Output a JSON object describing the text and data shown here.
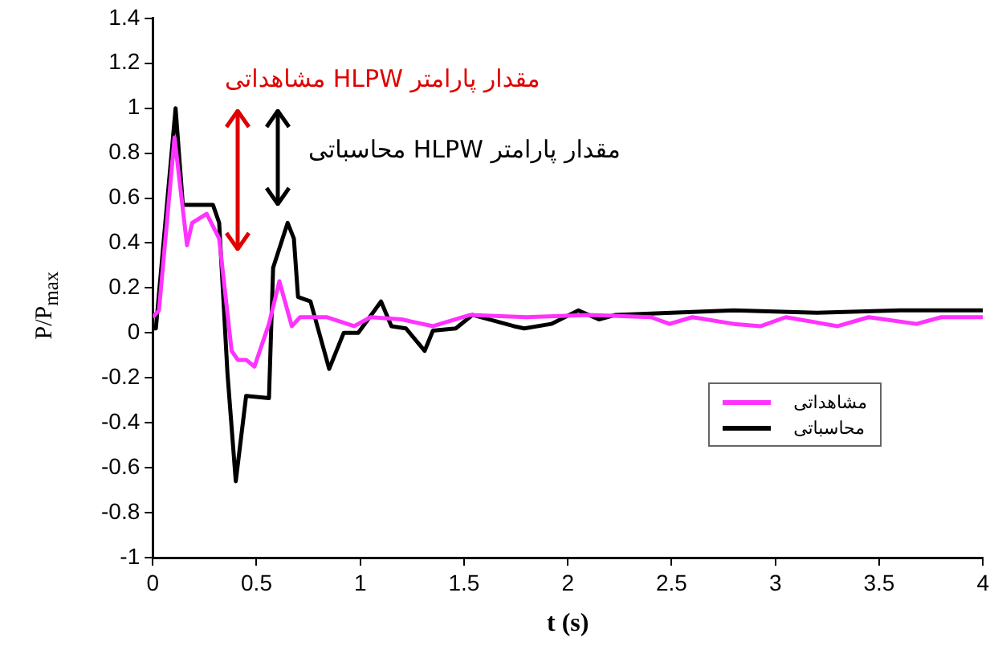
{
  "chart_data": {
    "type": "line",
    "xlabel": "t (s)",
    "ylabel": "P/P$_{max}$",
    "xlim": [
      0,
      4
    ],
    "xticks": [
      0,
      0.5,
      1,
      1.5,
      2,
      2.5,
      3,
      3.5,
      4
    ],
    "ylim": [
      -1,
      1.4
    ],
    "yticks": [
      -1,
      -0.8,
      -0.6,
      -0.4,
      -0.2,
      0,
      0.2,
      0.4,
      0.6,
      0.8,
      1,
      1.2,
      1.4
    ],
    "grid": false,
    "legend": "bottom right",
    "marker": "none",
    "line_style": "solid",
    "annotations": [
      "مقدار پارامتر HLPW مشاهداتی",
      "مقدار پارامتر HLPW محاسباتی"
    ],
    "series": [
      {
        "name": "مشاهداتی",
        "color": "#ff33ff",
        "x": [
          0,
          0.03,
          0.105,
          0.165,
          0.19,
          0.26,
          0.32,
          0.38,
          0.41,
          0.45,
          0.49,
          0.56,
          0.61,
          0.67,
          0.71,
          0.84,
          0.97,
          1.05,
          1.2,
          1.35,
          1.53,
          1.8,
          2.1,
          2.4,
          2.49,
          2.6,
          2.8,
          2.93,
          3.05,
          3.3,
          3.45,
          3.68,
          3.8,
          4
        ],
        "values": [
          0.07,
          0.1,
          0.87,
          0.39,
          0.49,
          0.53,
          0.42,
          -0.08,
          -0.12,
          -0.12,
          -0.15,
          0.04,
          0.23,
          0.03,
          0.07,
          0.07,
          0.03,
          0.07,
          0.06,
          0.03,
          0.08,
          0.07,
          0.08,
          0.07,
          0.04,
          0.07,
          0.04,
          0.03,
          0.07,
          0.03,
          0.07,
          0.04,
          0.07,
          0.07
        ]
      },
      {
        "name": "محاسباتی",
        "color": "#000000",
        "x": [
          0,
          0.015,
          0.11,
          0.145,
          0.29,
          0.32,
          0.36,
          0.4,
          0.45,
          0.56,
          0.58,
          0.65,
          0.68,
          0.7,
          0.76,
          0.85,
          0.92,
          0.99,
          1.1,
          1.15,
          1.22,
          1.31,
          1.35,
          1.46,
          1.54,
          1.74,
          1.79,
          1.92,
          2.05,
          2.15,
          2.23,
          2.5,
          2.8,
          3.2,
          3.6,
          4
        ],
        "values": [
          0.02,
          0.02,
          1.0,
          0.57,
          0.57,
          0.49,
          -0.18,
          -0.66,
          -0.28,
          -0.29,
          0.29,
          0.49,
          0.42,
          0.16,
          0.14,
          -0.16,
          0,
          0,
          0.14,
          0.03,
          0.02,
          -0.08,
          0.01,
          0.02,
          0.08,
          0.03,
          0.02,
          0.04,
          0.1,
          0.06,
          0.08,
          0.09,
          0.1,
          0.09,
          0.1,
          0.1
        ]
      }
    ]
  }
}
